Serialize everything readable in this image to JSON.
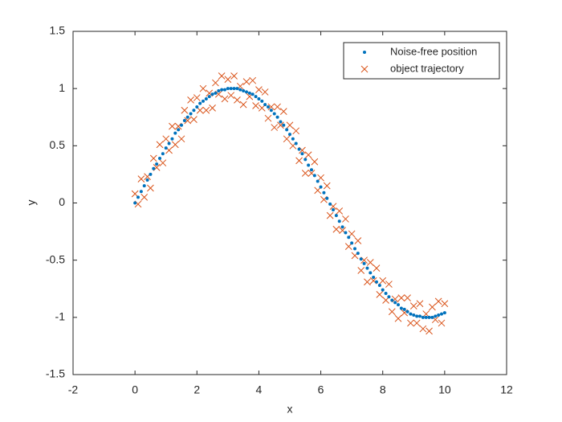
{
  "chart_data": {
    "type": "scatter",
    "xlabel": "x",
    "ylabel": "y",
    "xlim": [
      -2,
      12
    ],
    "xticks": [
      -2,
      0,
      2,
      4,
      6,
      8,
      10,
      12
    ],
    "ylim": [
      -1.5,
      1.5
    ],
    "yticks": [
      -1.5,
      -1,
      -0.5,
      0,
      0.5,
      1,
      1.5
    ],
    "legend": "upper right",
    "grid": false,
    "x": [
      0,
      0.1,
      0.2,
      0.3,
      0.4,
      0.5,
      0.6,
      0.7,
      0.8,
      0.9,
      1,
      1.1,
      1.2,
      1.3,
      1.4,
      1.5,
      1.6,
      1.7,
      1.8,
      1.9,
      2,
      2.1,
      2.2,
      2.3,
      2.4,
      2.5,
      2.6,
      2.7,
      2.8,
      2.9,
      3,
      3.1,
      3.2,
      3.3,
      3.4,
      3.5,
      3.6,
      3.7,
      3.8,
      3.9,
      4,
      4.1,
      4.2,
      4.3,
      4.4,
      4.5,
      4.6,
      4.7,
      4.8,
      4.9,
      5,
      5.1,
      5.2,
      5.3,
      5.4,
      5.5,
      5.6,
      5.7,
      5.8,
      5.9,
      6,
      6.1,
      6.2,
      6.3,
      6.4,
      6.5,
      6.6,
      6.7,
      6.8,
      6.9,
      7,
      7.1,
      7.2,
      7.3,
      7.4,
      7.5,
      7.6,
      7.7,
      7.8,
      7.9,
      8,
      8.1,
      8.2,
      8.3,
      8.4,
      8.5,
      8.6,
      8.7,
      8.8,
      8.9,
      9,
      9.1,
      9.2,
      9.3,
      9.4,
      9.5,
      9.6,
      9.7,
      9.8,
      9.9,
      10
    ],
    "series": [
      {
        "name": "Noise-free position",
        "color": "#0072bd",
        "marker": "dot",
        "values": [
          0,
          0.05,
          0.1,
          0.15,
          0.2,
          0.25,
          0.3,
          0.34,
          0.39,
          0.43,
          0.48,
          0.52,
          0.56,
          0.61,
          0.64,
          0.68,
          0.72,
          0.75,
          0.78,
          0.81,
          0.84,
          0.87,
          0.89,
          0.91,
          0.93,
          0.95,
          0.96,
          0.98,
          0.99,
          0.99,
          1.0,
          1.0,
          1.0,
          1.0,
          0.99,
          0.98,
          0.97,
          0.96,
          0.95,
          0.93,
          0.91,
          0.89,
          0.86,
          0.84,
          0.81,
          0.78,
          0.75,
          0.71,
          0.68,
          0.64,
          0.6,
          0.56,
          0.52,
          0.47,
          0.43,
          0.38,
          0.33,
          0.29,
          0.24,
          0.19,
          0.14,
          0.09,
          0.04,
          -0.01,
          -0.06,
          -0.11,
          -0.16,
          -0.21,
          -0.26,
          -0.3,
          -0.35,
          -0.4,
          -0.44,
          -0.49,
          -0.53,
          -0.57,
          -0.61,
          -0.65,
          -0.69,
          -0.72,
          -0.76,
          -0.79,
          -0.82,
          -0.85,
          -0.87,
          -0.89,
          -0.92,
          -0.93,
          -0.95,
          -0.97,
          -0.98,
          -0.99,
          -0.99,
          -1.0,
          -1.0,
          -1.0,
          -1.0,
          -0.99,
          -0.98,
          -0.97,
          -0.96
        ]
      },
      {
        "name": "object trajectory",
        "color": "#d95319",
        "marker": "x",
        "values": [
          0.08,
          -0.01,
          0.21,
          0.05,
          0.23,
          0.13,
          0.39,
          0.31,
          0.51,
          0.35,
          0.56,
          0.46,
          0.67,
          0.51,
          0.67,
          0.56,
          0.81,
          0.72,
          0.9,
          0.73,
          0.92,
          0.81,
          1.0,
          0.81,
          0.96,
          0.83,
          1.05,
          0.95,
          1.11,
          0.91,
          1.08,
          0.94,
          1.11,
          0.9,
          1.02,
          0.86,
          1.06,
          0.93,
          1.07,
          0.85,
          0.99,
          0.83,
          0.97,
          0.74,
          0.84,
          0.66,
          0.84,
          0.68,
          0.8,
          0.56,
          0.68,
          0.5,
          0.63,
          0.37,
          0.46,
          0.26,
          0.42,
          0.26,
          0.36,
          0.11,
          0.22,
          0.03,
          0.15,
          -0.11,
          -0.03,
          -0.23,
          -0.07,
          -0.24,
          -0.14,
          -0.38,
          -0.27,
          -0.46,
          -0.33,
          -0.59,
          -0.5,
          -0.69,
          -0.52,
          -0.68,
          -0.57,
          -0.8,
          -0.68,
          -0.85,
          -0.71,
          -0.95,
          -0.84,
          -1.01,
          -0.83,
          -0.96,
          -0.83,
          -1.05,
          -0.9,
          -1.05,
          -0.88,
          -1.1,
          -0.97,
          -1.12,
          -0.91,
          -1.02,
          -0.86,
          -1.05,
          -0.88
        ]
      }
    ]
  }
}
